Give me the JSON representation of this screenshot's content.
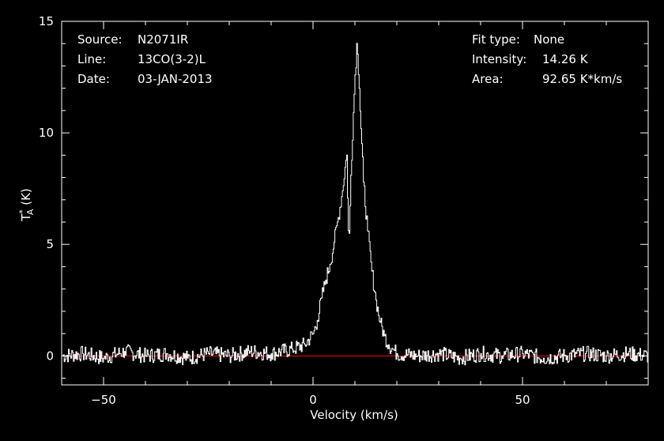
{
  "info_left": {
    "source_label": "Source:",
    "source_value": "N2071IR",
    "line_label": "Line:",
    "line_value": "13CO(3-2)L",
    "date_label": "Date:",
    "date_value": "03-JAN-2013"
  },
  "info_right": {
    "fit_label": "Fit type:",
    "fit_value": "None",
    "intensity_label": "Intensity:",
    "intensity_value": "14.26 K",
    "area_label": "Area:",
    "area_value": "92.65 K*km/s"
  },
  "colors": {
    "background": "#000000",
    "axes": "#ffffff",
    "spectrum": "#ffffff",
    "baseline": "#ff0000"
  },
  "chart_data": {
    "type": "line",
    "xlabel": "Velocity (km/s)",
    "ylabel": "T",
    "ylabel_sup": "*",
    "ylabel_sub": "A",
    "ylabel_unit": " (K)",
    "xlim": [
      -60,
      80
    ],
    "ylim": [
      -1.3,
      15
    ],
    "xticks": [
      -50,
      0,
      50
    ],
    "xtick_labels": [
      "−50",
      "0",
      "50"
    ],
    "yticks": [
      0,
      5,
      10,
      15
    ],
    "ytick_labels": [
      "0",
      "5",
      "10",
      "15"
    ],
    "grid": false,
    "baseline_y": 0,
    "series": [
      {
        "style": "histogram",
        "x": [
          -60,
          -55,
          -50,
          -45,
          -40,
          -35,
          -30,
          -25,
          -20,
          -15,
          -10,
          -5,
          -2,
          0,
          1,
          2,
          3,
          4,
          5,
          6,
          7,
          7.5,
          8,
          8.5,
          9,
          9.5,
          10,
          10.5,
          11,
          11.5,
          12,
          13,
          14,
          15,
          16,
          17,
          18,
          19,
          20,
          25,
          30,
          35,
          40,
          45,
          50,
          55,
          60,
          65,
          70,
          75,
          80
        ],
        "y": [
          0,
          0.1,
          -0.1,
          0.2,
          0,
          0.1,
          -0.1,
          0.1,
          0,
          0.2,
          0.1,
          0.3,
          0.5,
          1.0,
          1.6,
          2.6,
          3.4,
          4.1,
          5.1,
          6.2,
          7.4,
          8.3,
          9.0,
          4.7,
          8.1,
          10.5,
          12.6,
          14.26,
          12.0,
          9.8,
          7.8,
          5.6,
          3.8,
          2.5,
          1.5,
          0.9,
          0.5,
          0.3,
          0.1,
          0.0,
          0.1,
          -0.1,
          0.1,
          0.0,
          0.1,
          -0.1,
          0.0,
          0.1,
          0.0,
          0.1,
          0.0
        ]
      }
    ]
  }
}
